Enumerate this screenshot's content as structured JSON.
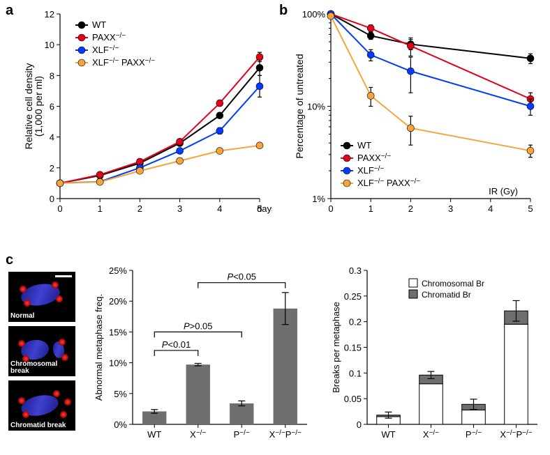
{
  "panel_labels": {
    "a": "a",
    "b": "b",
    "c": "c"
  },
  "chart_a": {
    "type": "line",
    "x": [
      0,
      1,
      2,
      3,
      4,
      5
    ],
    "xlim": [
      0,
      5
    ],
    "ylim": [
      0,
      12
    ],
    "xtick_labels": [
      "0",
      "1",
      "2",
      "3",
      "4",
      "5"
    ],
    "ytick_values": [
      0,
      2,
      4,
      6,
      8,
      10,
      12
    ],
    "ytick_labels": [
      "0",
      "2",
      "4",
      "6",
      "8",
      "10",
      "12"
    ],
    "xlabel": "days",
    "ylabel": "Relative cell density\n(1,000 per ml)",
    "y_font": 14,
    "label_font": 14,
    "series": [
      {
        "name": "WT",
        "color": "#000000",
        "y": [
          1.0,
          1.5,
          2.3,
          3.6,
          5.4,
          8.5
        ],
        "err": [
          0,
          0.05,
          0.05,
          0.08,
          0.15,
          0.5
        ]
      },
      {
        "name": "PAXX−/−",
        "color": "#e2001a",
        "y": [
          1.0,
          1.55,
          2.4,
          3.7,
          6.2,
          9.2
        ],
        "err": [
          0,
          0.05,
          0.05,
          0.08,
          0.18,
          0.3
        ]
      },
      {
        "name": "XLF−/−",
        "color": "#003cff",
        "y": [
          1.0,
          1.1,
          2.0,
          3.1,
          4.4,
          7.3
        ],
        "err": [
          0,
          0.05,
          0.1,
          0.1,
          0.2,
          0.7
        ]
      },
      {
        "name": "XLF−/− PAXX−/−",
        "color": "#f7a43c",
        "y": [
          1.0,
          1.08,
          1.8,
          2.45,
          3.1,
          3.45
        ],
        "err": [
          0,
          0.05,
          0.05,
          0.08,
          0.1,
          0.15
        ]
      }
    ],
    "legend_pos": "top-left",
    "marker_size": 5
  },
  "chart_b": {
    "type": "line-log",
    "x": [
      0,
      1,
      2,
      5
    ],
    "xlim": [
      0,
      5
    ],
    "ylim": [
      1,
      100
    ],
    "xtick_values": [
      0,
      1,
      2,
      3,
      4,
      5
    ],
    "xtick_labels": [
      "0",
      "1",
      "2",
      "3",
      "4",
      "5"
    ],
    "ytick_values": [
      1,
      10,
      100
    ],
    "ytick_labels": [
      "1%",
      "10%",
      "100%"
    ],
    "xlabel": "IR (Gy)",
    "ylabel": "Percentage of untreated",
    "label_font": 14,
    "series": [
      {
        "name": "WT",
        "color": "#000000",
        "y": [
          100,
          58,
          47,
          33
        ],
        "err": [
          0,
          5,
          6,
          4
        ]
      },
      {
        "name": "PAXX−/−",
        "color": "#e2001a",
        "y": [
          100,
          70,
          45,
          12
        ],
        "err": [
          0,
          6,
          10,
          2
        ]
      },
      {
        "name": "XLF−/−",
        "color": "#003cff",
        "y": [
          100,
          36,
          24,
          10
        ],
        "err": [
          0,
          5,
          10,
          2
        ]
      },
      {
        "name": "XLF−/− PAXX−/−",
        "color": "#f7a43c",
        "y": [
          95,
          13,
          5.8,
          3.3
        ],
        "err": [
          4,
          3,
          2,
          0.5
        ]
      }
    ],
    "legend_pos": "bottom-left",
    "marker_size": 5
  },
  "micro_images": {
    "labels": [
      "Normal",
      "Chromosomal break",
      "Chromatid break"
    ]
  },
  "chart_c_mid": {
    "type": "bar",
    "categories": [
      "WT",
      "X−/−",
      "P−/−",
      "X−/−P−/−"
    ],
    "values": [
      2.1,
      9.7,
      3.4,
      18.8
    ],
    "errs": [
      0.3,
      0.2,
      0.4,
      2.6
    ],
    "ylim": [
      0,
      25
    ],
    "ytick_values": [
      0,
      5,
      10,
      15,
      20,
      25
    ],
    "ytick_labels": [
      "0%",
      "5%",
      "10%",
      "15%",
      "20%",
      "25%"
    ],
    "ylabel": "Abnormal metaphase freq.",
    "bar_color": "#6e6e6e",
    "brackets": [
      {
        "from": 0,
        "to": 1,
        "y": 12,
        "label": "P<0.01",
        "italic_p": true
      },
      {
        "from": 0,
        "to": 2,
        "y": 15,
        "label": "P>0.05",
        "italic_p": true
      },
      {
        "from": 1,
        "to": 3,
        "y": 23,
        "label": "P<0.05",
        "italic_p": true
      }
    ],
    "bar_width": 0.55
  },
  "chart_c_right": {
    "type": "stacked-bar",
    "categories": [
      "WT",
      "X−/−",
      "P−/−",
      "X−/−P−/−"
    ],
    "legend": [
      "Chromosomal Br",
      "Chromatid Br"
    ],
    "legend_colors": [
      "#ffffff",
      "#6e6e6e"
    ],
    "chromosomal": [
      0.015,
      0.079,
      0.028,
      0.195
    ],
    "chromatid": [
      0.003,
      0.017,
      0.011,
      0.026
    ],
    "errs": [
      0.006,
      0.007,
      0.01,
      0.02
    ],
    "ylim": [
      0,
      0.3
    ],
    "ytick_values": [
      0,
      0.05,
      0.1,
      0.15,
      0.2,
      0.25,
      0.3
    ],
    "ytick_labels": [
      "0",
      "0.05",
      "0.1",
      "0.15",
      "0.2",
      "0.25",
      "0.3"
    ],
    "ylabel": "Breaks per metaphase",
    "bar_width": 0.55
  },
  "colors": {
    "axis": "#000000",
    "bg": "#ffffff"
  }
}
